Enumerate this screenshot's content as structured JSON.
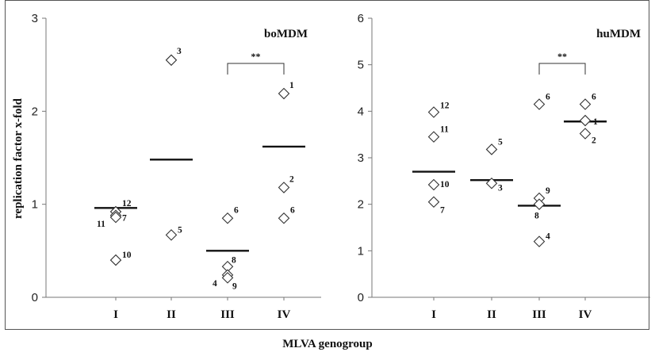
{
  "chart_data": [
    {
      "type": "scatter",
      "title": "boMDM",
      "ylabel": "replication factor x-fold",
      "xlabel": "",
      "categories": [
        "I",
        "II",
        "III",
        "IV"
      ],
      "ylim": [
        0,
        3
      ],
      "yticks": [
        "0",
        "1",
        "2",
        "3"
      ],
      "points": [
        {
          "cat": "I",
          "y": 0.92,
          "label": "12"
        },
        {
          "cat": "I",
          "y": 0.88,
          "label": "7"
        },
        {
          "cat": "I",
          "y": 0.86,
          "label": "11"
        },
        {
          "cat": "I",
          "y": 0.4,
          "label": "10"
        },
        {
          "cat": "II",
          "y": 2.55,
          "label": "3"
        },
        {
          "cat": "II",
          "y": 0.67,
          "label": "5"
        },
        {
          "cat": "III",
          "y": 0.85,
          "label": "6"
        },
        {
          "cat": "III",
          "y": 0.33,
          "label": "8"
        },
        {
          "cat": "III",
          "y": 0.24,
          "label": "4"
        },
        {
          "cat": "III",
          "y": 0.21,
          "label": "9"
        },
        {
          "cat": "IV",
          "y": 2.19,
          "label": "1"
        },
        {
          "cat": "IV",
          "y": 1.18,
          "label": "2"
        },
        {
          "cat": "IV",
          "y": 0.85,
          "label": "6"
        }
      ],
      "means": [
        {
          "cat": "I",
          "y": 0.96
        },
        {
          "cat": "II",
          "y": 1.48
        },
        {
          "cat": "III",
          "y": 0.5
        },
        {
          "cat": "IV",
          "y": 1.62
        }
      ],
      "significance": {
        "from": "III",
        "to": "IV",
        "label": "**"
      },
      "grid": false
    },
    {
      "type": "scatter",
      "title": "huMDM",
      "ylabel": "",
      "xlabel": "",
      "categories": [
        "I",
        "II",
        "III",
        "IV"
      ],
      "ylim": [
        0,
        6
      ],
      "yticks": [
        "0",
        "1",
        "2",
        "3",
        "4",
        "5",
        "6"
      ],
      "points": [
        {
          "cat": "I",
          "y": 3.98,
          "label": "12"
        },
        {
          "cat": "I",
          "y": 3.45,
          "label": "11"
        },
        {
          "cat": "I",
          "y": 2.42,
          "label": "10"
        },
        {
          "cat": "I",
          "y": 2.05,
          "label": "7"
        },
        {
          "cat": "II",
          "y": 3.18,
          "label": "5"
        },
        {
          "cat": "II",
          "y": 2.45,
          "label": "3"
        },
        {
          "cat": "III",
          "y": 4.15,
          "label": "6"
        },
        {
          "cat": "III",
          "y": 2.13,
          "label": "9"
        },
        {
          "cat": "III",
          "y": 2.0,
          "label": "8"
        },
        {
          "cat": "III",
          "y": 1.2,
          "label": "4"
        },
        {
          "cat": "IV",
          "y": 4.15,
          "label": "6"
        },
        {
          "cat": "IV",
          "y": 3.8,
          "label": "1"
        },
        {
          "cat": "IV",
          "y": 3.52,
          "label": "2"
        }
      ],
      "means": [
        {
          "cat": "I",
          "y": 2.7
        },
        {
          "cat": "II",
          "y": 2.52
        },
        {
          "cat": "III",
          "y": 1.97
        },
        {
          "cat": "IV",
          "y": 3.78
        }
      ],
      "significance": {
        "from": "III",
        "to": "IV",
        "label": "**"
      },
      "grid": false
    }
  ],
  "figure": {
    "xlabel": "MLVA genogroup",
    "ylabel": "replication factor x-fold",
    "marker": "open-diamond",
    "color": "#111111"
  }
}
